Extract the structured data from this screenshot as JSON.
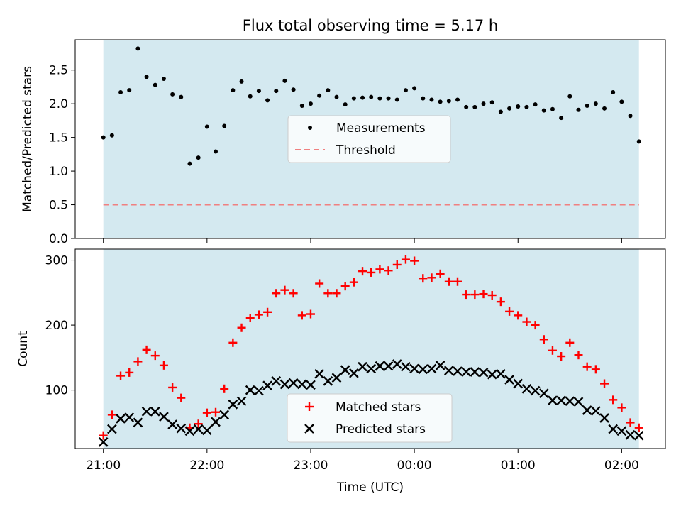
{
  "chart_data": [
    {
      "type": "scatter",
      "title": "Flux total observing time = 5.17 h",
      "xlabel": "",
      "ylabel": "Matched/Predicted stars",
      "ylim": [
        0,
        2.95
      ],
      "yticks": [
        "0.0",
        "0.5",
        "1.0",
        "1.5",
        "2.0",
        "2.5"
      ],
      "grid": false,
      "legend_placement": "center",
      "shaded_region": {
        "x_start": "21:00",
        "x_end": "02:10",
        "color": "#d4e9f0"
      },
      "series": [
        {
          "name": "Measurements",
          "marker": "dot",
          "color": "#000000",
          "x": [
            "21:00",
            "21:05",
            "21:10",
            "21:15",
            "21:20",
            "21:25",
            "21:30",
            "21:35",
            "21:40",
            "21:45",
            "21:50",
            "21:55",
            "22:00",
            "22:05",
            "22:10",
            "22:15",
            "22:20",
            "22:25",
            "22:30",
            "22:35",
            "22:40",
            "22:45",
            "22:50",
            "22:55",
            "23:00",
            "23:05",
            "23:10",
            "23:15",
            "23:20",
            "23:25",
            "23:30",
            "23:35",
            "23:40",
            "23:45",
            "23:50",
            "23:55",
            "00:00",
            "00:05",
            "00:10",
            "00:15",
            "00:20",
            "00:25",
            "00:30",
            "00:35",
            "00:40",
            "00:45",
            "00:50",
            "00:55",
            "01:00",
            "01:05",
            "01:10",
            "01:15",
            "01:20",
            "01:25",
            "01:30",
            "01:35",
            "01:40",
            "01:45",
            "01:50",
            "01:55",
            "02:00",
            "02:05",
            "02:10"
          ],
          "values": [
            1.5,
            1.53,
            2.17,
            2.2,
            2.82,
            2.4,
            2.28,
            2.37,
            2.14,
            2.1,
            1.11,
            1.2,
            1.66,
            1.29,
            1.67,
            2.2,
            2.33,
            2.11,
            2.19,
            2.05,
            2.19,
            2.34,
            2.21,
            1.97,
            2.0,
            2.12,
            2.2,
            2.1,
            1.99,
            2.08,
            2.09,
            2.1,
            2.08,
            2.08,
            2.06,
            2.2,
            2.23,
            2.08,
            2.06,
            2.03,
            2.04,
            2.06,
            1.95,
            1.95,
            2.0,
            2.02,
            1.88,
            1.93,
            1.96,
            1.95,
            1.99,
            1.9,
            1.92,
            1.79,
            2.11,
            1.91,
            1.97,
            2.0,
            1.93,
            2.17,
            2.03,
            1.82,
            1.44
          ]
        },
        {
          "name": "Threshold",
          "marker": "dashed-line",
          "color": "#f08080",
          "x": [
            "21:00",
            "02:10"
          ],
          "values": [
            0.5,
            0.5
          ]
        }
      ]
    },
    {
      "type": "scatter",
      "title": "",
      "xlabel": "Time (UTC)",
      "ylabel": "Count",
      "ylim": [
        10,
        317
      ],
      "yticks": [
        "100",
        "200",
        "300"
      ],
      "xticks": [
        "21:00",
        "22:00",
        "23:00",
        "00:00",
        "01:00",
        "02:00"
      ],
      "grid": false,
      "legend_placement": "lower center",
      "shaded_region": {
        "x_start": "21:00",
        "x_end": "02:10",
        "color": "#d4e9f0"
      },
      "series": [
        {
          "name": "Matched stars",
          "marker": "plus",
          "color": "#ff0000",
          "x": [
            "21:00",
            "21:05",
            "21:10",
            "21:15",
            "21:20",
            "21:25",
            "21:30",
            "21:35",
            "21:40",
            "21:45",
            "21:50",
            "21:55",
            "22:00",
            "22:05",
            "22:10",
            "22:15",
            "22:20",
            "22:25",
            "22:30",
            "22:35",
            "22:40",
            "22:45",
            "22:50",
            "22:55",
            "23:00",
            "23:05",
            "23:10",
            "23:15",
            "23:20",
            "23:25",
            "23:30",
            "23:35",
            "23:40",
            "23:45",
            "23:50",
            "23:55",
            "00:00",
            "00:05",
            "00:10",
            "00:15",
            "00:20",
            "00:25",
            "00:30",
            "00:35",
            "00:40",
            "00:45",
            "00:50",
            "00:55",
            "01:00",
            "01:05",
            "01:10",
            "01:15",
            "01:20",
            "01:25",
            "01:30",
            "01:35",
            "01:40",
            "01:45",
            "01:50",
            "01:55",
            "02:00",
            "02:05",
            "02:10"
          ],
          "values": [
            30,
            62,
            122,
            127,
            144,
            162,
            153,
            138,
            104,
            88,
            42,
            48,
            65,
            66,
            102,
            173,
            196,
            211,
            216,
            220,
            249,
            254,
            249,
            215,
            217,
            264,
            249,
            249,
            260,
            266,
            283,
            281,
            286,
            284,
            293,
            301,
            299,
            272,
            273,
            279,
            267,
            267,
            247,
            247,
            248,
            246,
            236,
            221,
            215,
            205,
            200,
            178,
            161,
            152,
            173,
            154,
            136,
            132,
            110,
            85,
            73,
            50,
            42
          ]
        },
        {
          "name": "Predicted stars",
          "marker": "x",
          "color": "#000000",
          "x": [
            "21:00",
            "21:05",
            "21:10",
            "21:15",
            "21:20",
            "21:25",
            "21:30",
            "21:35",
            "21:40",
            "21:45",
            "21:50",
            "21:55",
            "22:00",
            "22:05",
            "22:10",
            "22:15",
            "22:20",
            "22:25",
            "22:30",
            "22:35",
            "22:40",
            "22:45",
            "22:50",
            "22:55",
            "23:00",
            "23:05",
            "23:10",
            "23:15",
            "23:20",
            "23:25",
            "23:30",
            "23:35",
            "23:40",
            "23:45",
            "23:50",
            "23:55",
            "00:00",
            "00:05",
            "00:10",
            "00:15",
            "00:20",
            "00:25",
            "00:30",
            "00:35",
            "00:40",
            "00:45",
            "00:50",
            "00:55",
            "01:00",
            "01:05",
            "01:10",
            "01:15",
            "01:20",
            "01:25",
            "01:30",
            "01:35",
            "01:40",
            "01:45",
            "01:50",
            "01:55",
            "02:00",
            "02:05",
            "02:10"
          ],
          "values": [
            20,
            40,
            56,
            58,
            50,
            67,
            67,
            59,
            47,
            41,
            37,
            40,
            38,
            51,
            62,
            78,
            83,
            100,
            99,
            107,
            114,
            109,
            111,
            109,
            108,
            125,
            114,
            119,
            131,
            126,
            136,
            133,
            137,
            137,
            140,
            136,
            133,
            132,
            133,
            138,
            130,
            129,
            128,
            128,
            127,
            124,
            125,
            116,
            110,
            102,
            99,
            95,
            84,
            84,
            83,
            82,
            69,
            68,
            57,
            40,
            37,
            31,
            30
          ]
        }
      ]
    }
  ]
}
